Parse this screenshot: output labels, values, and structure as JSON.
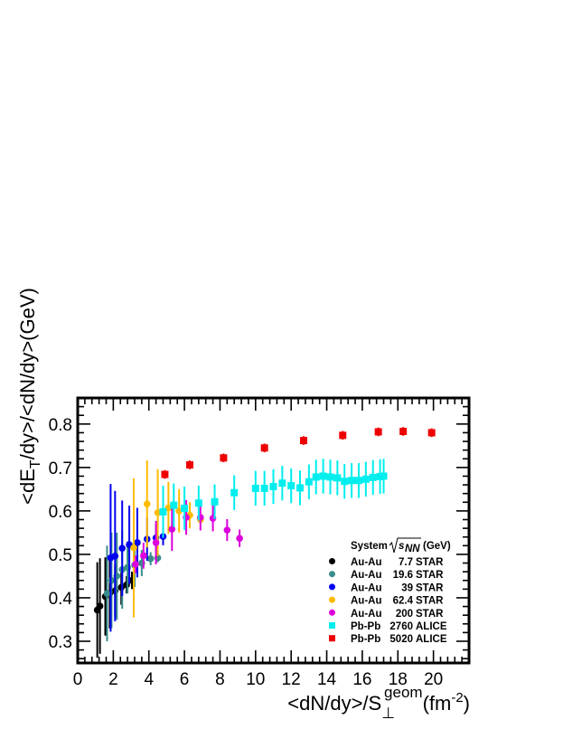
{
  "chart_data": {
    "type": "scatter",
    "xlabel": {
      "main": "<dN/dy>/S",
      "sub": "⊥",
      "sup": "geom",
      "unit_open": "(fm",
      "unit_exp": "-2",
      "unit_close": ")"
    },
    "ylabel": {
      "pre": "<dE",
      "sub": "T",
      "post": "/dy>/<dN/dy>(GeV)"
    },
    "xlim": [
      0,
      22
    ],
    "ylim": [
      0.25,
      0.86
    ],
    "xticks": [
      0,
      2,
      4,
      6,
      8,
      10,
      12,
      14,
      16,
      18,
      20
    ],
    "yticks": [
      0.3,
      0.4,
      0.5,
      0.6,
      0.7,
      0.8
    ],
    "grid": false,
    "legend": {
      "position": "bottom-right",
      "header_system": "System",
      "header_energy": "(GeV)",
      "header_symbol": "s",
      "header_symbol_sub": "NN"
    },
    "series": [
      {
        "system": "Au-Au",
        "energy": "7.7",
        "experiment": "STAR",
        "color": "#000000",
        "marker": "circle",
        "x": [
          1.1,
          1.25,
          1.55,
          1.8,
          2.1,
          2.45,
          2.75,
          3.05
        ],
        "y": [
          0.372,
          0.381,
          0.403,
          0.41,
          0.416,
          0.424,
          0.43,
          0.44
        ],
        "err": [
          0.11,
          0.11,
          0.09,
          0.08,
          0.06,
          0.04,
          0.02,
          0.02
        ]
      },
      {
        "system": "Au-Au",
        "energy": "19.6",
        "experiment": "STAR",
        "color": "#3a8c8c",
        "marker": "circle",
        "x": [
          1.65,
          1.9,
          2.2,
          2.5,
          2.8,
          3.2,
          3.6,
          4.1,
          4.5
        ],
        "y": [
          0.41,
          0.44,
          0.45,
          0.465,
          0.47,
          0.475,
          0.48,
          0.49,
          0.492
        ],
        "err": [
          0.11,
          0.11,
          0.1,
          0.09,
          0.06,
          0.05,
          0.03,
          0.015,
          0.01
        ]
      },
      {
        "system": "Au-Au",
        "energy": "39",
        "experiment": "STAR",
        "color": "#0000ee",
        "marker": "circle",
        "x": [
          1.85,
          2.1,
          2.5,
          2.9,
          3.35,
          3.9,
          4.4,
          4.8
        ],
        "y": [
          0.492,
          0.496,
          0.514,
          0.522,
          0.527,
          0.535,
          0.538,
          0.541
        ],
        "err": [
          0.17,
          0.15,
          0.11,
          0.09,
          0.08,
          0.05,
          0.03,
          0.02
        ]
      },
      {
        "system": "Au-Au",
        "energy": "62.4",
        "experiment": "STAR",
        "color": "#ffbb00",
        "marker": "circle",
        "x": [
          3.15,
          3.9,
          4.5,
          5.1,
          5.7,
          6.3,
          6.9
        ],
        "y": [
          0.515,
          0.616,
          0.596,
          0.607,
          0.6,
          0.59,
          0.58
        ],
        "err": [
          0.16,
          0.1,
          0.1,
          0.06,
          0.05,
          0.03,
          0.01
        ]
      },
      {
        "system": "Au-Au",
        "energy": "200",
        "experiment": "STAR",
        "color": "#dd00dd",
        "marker": "circle",
        "x": [
          3.25,
          3.7,
          4.4,
          5.3,
          6.1,
          6.9,
          7.6,
          8.4,
          9.1
        ],
        "y": [
          0.477,
          0.497,
          0.527,
          0.558,
          0.585,
          0.585,
          0.583,
          0.556,
          0.537
        ],
        "err": [
          0.02,
          0.03,
          0.05,
          0.05,
          0.04,
          0.03,
          0.03,
          0.025,
          0.02
        ]
      },
      {
        "system": "Pb-Pb",
        "energy": "2760",
        "experiment": "ALICE",
        "color": "#00eeee",
        "marker": "square",
        "x": [
          4.8,
          5.4,
          6.0,
          6.8,
          7.7,
          8.8,
          10.0,
          10.5,
          11.0,
          11.5,
          12.0,
          12.5,
          13.0,
          13.4,
          13.8,
          14.2,
          14.6,
          15.0,
          15.4,
          15.8,
          16.2,
          16.6,
          17.0,
          17.2
        ],
        "y": [
          0.598,
          0.613,
          0.606,
          0.618,
          0.621,
          0.642,
          0.652,
          0.652,
          0.656,
          0.664,
          0.658,
          0.653,
          0.667,
          0.678,
          0.68,
          0.678,
          0.676,
          0.668,
          0.67,
          0.67,
          0.673,
          0.677,
          0.679,
          0.68
        ],
        "err": [
          0.06,
          0.05,
          0.05,
          0.04,
          0.04,
          0.04,
          0.04,
          0.04,
          0.04,
          0.04,
          0.04,
          0.04,
          0.04,
          0.04,
          0.04,
          0.04,
          0.04,
          0.04,
          0.04,
          0.04,
          0.04,
          0.04,
          0.04,
          0.04
        ]
      },
      {
        "system": "Pb-Pb",
        "energy": "5020",
        "experiment": "ALICE",
        "color": "#ee0000",
        "marker": "square",
        "x": [
          4.9,
          6.3,
          8.2,
          10.5,
          12.7,
          14.9,
          16.9,
          18.3,
          19.9
        ],
        "y": [
          0.684,
          0.706,
          0.722,
          0.745,
          0.762,
          0.774,
          0.782,
          0.783,
          0.78
        ],
        "err": [
          0.01,
          0.01,
          0.01,
          0.01,
          0.01,
          0.01,
          0.01,
          0.01,
          0.01
        ]
      }
    ]
  }
}
